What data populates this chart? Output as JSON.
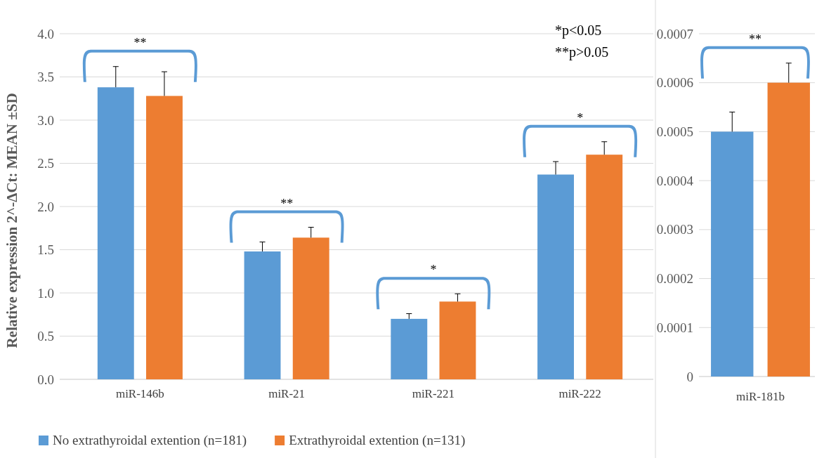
{
  "chart_data": [
    {
      "type": "bar",
      "ylabel": "Relative expression 2^-ΔCt: MEAN ±SD",
      "categories": [
        "miR-146b",
        "miR-21",
        "miR-221",
        "miR-222"
      ],
      "series": [
        {
          "name": "No extrathyroidal extention (n=181)",
          "color": "#5b9bd5",
          "values": [
            3.38,
            1.48,
            0.7,
            2.37
          ],
          "errors": [
            [
              3.38,
              3.62
            ],
            [
              1.48,
              1.59
            ],
            [
              0.7,
              0.76
            ],
            [
              2.37,
              2.52
            ]
          ]
        },
        {
          "name": "Extrathyroidal extention (n=131)",
          "color": "#ed7d31",
          "values": [
            3.28,
            1.64,
            0.9,
            2.6
          ],
          "errors": [
            [
              3.28,
              3.56
            ],
            [
              1.64,
              1.76
            ],
            [
              0.9,
              0.99
            ],
            [
              2.6,
              2.75
            ]
          ]
        }
      ],
      "ylim": [
        0,
        4
      ],
      "yticks": [
        {
          "value": 0,
          "label": "0.0"
        },
        0.5,
        {
          "value": 1,
          "label": "1.0"
        },
        1.5,
        {
          "value": 2,
          "label": "2.0"
        },
        2.5,
        {
          "value": 3,
          "label": "3.0"
        },
        3.5,
        {
          "value": 4,
          "label": "4.0"
        }
      ],
      "grid": "y",
      "legend": "bottom",
      "annotations": [
        "**",
        "**",
        "*",
        "*",
        "*p<0.05",
        "**p>0.05"
      ]
    },
    {
      "type": "bar",
      "categories": [
        "miR-181b"
      ],
      "series": [
        {
          "color": "#5b9bd5",
          "values": [
            0.0005
          ],
          "errors": [
            [
              0.0005,
              0.00054
            ]
          ]
        },
        {
          "color": "#ed7d31",
          "values": [
            0.0006
          ],
          "errors": [
            [
              0.0006,
              0.00064
            ]
          ]
        }
      ],
      "ylim": [
        0,
        0.0007
      ],
      "yticks": [
        0,
        0.0001,
        0.0002,
        0.0003,
        0.0004,
        0.0005,
        0.0006,
        0.0007
      ],
      "grid": "y",
      "annotations": [
        "**"
      ]
    }
  ]
}
